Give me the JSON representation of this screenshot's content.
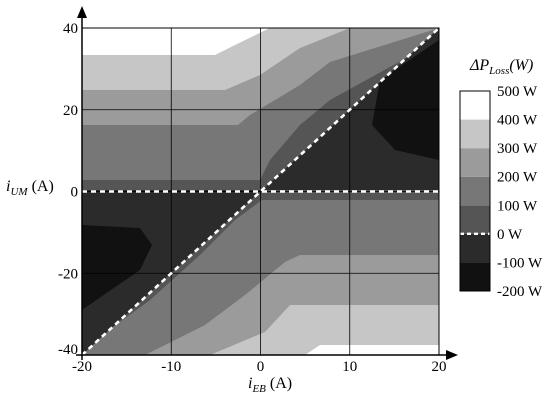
{
  "chart_data": {
    "type": "heatmap",
    "xlabel": {
      "main": "i",
      "sub": "EB",
      "unit": " (A)"
    },
    "ylabel": {
      "main": "i",
      "sub": "UM",
      "unit": " (A)"
    },
    "xlim": [
      -20,
      20
    ],
    "ylim": [
      -40,
      40
    ],
    "x_ticks": [
      -20,
      -10,
      0,
      10,
      20
    ],
    "y_ticks": [
      -40,
      -20,
      0,
      20,
      40
    ],
    "grid": true,
    "colorbar": {
      "title": {
        "main": "ΔP",
        "sub": "Loss",
        "rest": "(W)"
      },
      "levels": [
        -200,
        -100,
        0,
        100,
        200,
        300,
        400,
        500
      ],
      "tick_labels": [
        "500 W",
        "400 W",
        "300 W",
        "200 W",
        "100 W",
        "0 W",
        "-100 W",
        "-200 W"
      ],
      "band_colors": [
        "#111111",
        "#2b2b2b",
        "#555555",
        "#777777",
        "#9b9b9b",
        "#c6c6c6",
        "#ffffff"
      ],
      "zero_line_dashed": true
    },
    "reference_lines": [
      {
        "label": "",
        "from": [
          -20,
          -40
        ],
        "to": [
          20,
          40
        ],
        "style": "dashed",
        "color": "#ffffff"
      },
      {
        "label": "",
        "from": [
          -20,
          0
        ],
        "to": [
          20,
          0
        ],
        "style": "dashed",
        "color": "#ffffff"
      }
    ]
  }
}
